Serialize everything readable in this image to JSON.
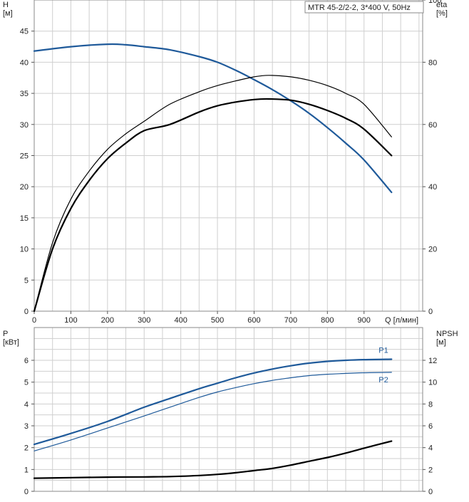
{
  "title": "MTR 45-2/2-2, 3*400 V, 50Hz",
  "colors": {
    "blue": "#1f5a9a",
    "black": "#000000",
    "grid": "#cfcfcf"
  },
  "chart_data": [
    {
      "type": "line",
      "xlabel": "Q [л/мин]",
      "ylabel_left": "H\n[м]",
      "ylabel_right": "eta\n[%]",
      "xlim": [
        0,
        1060
      ],
      "ylim_left": [
        0,
        50
      ],
      "ylim_right": [
        0,
        100
      ],
      "x_ticks": [
        "0",
        "100",
        "200",
        "300",
        "400",
        "500",
        "600",
        "700",
        "800",
        "900"
      ],
      "y_ticks_left": [
        "0",
        "5",
        "10",
        "15",
        "20",
        "25",
        "30",
        "35",
        "40",
        "45"
      ],
      "y_ticks_right": [
        "0",
        "20",
        "40",
        "60",
        "80",
        "100"
      ],
      "grid": true,
      "series": [
        {
          "id": "head",
          "axis": "left",
          "color": "#1f5a9a",
          "x": [
            0,
            100,
            200,
            250,
            300,
            370,
            450,
            500,
            550,
            600,
            650,
            700,
            750,
            800,
            850,
            900,
            975
          ],
          "y": [
            41.8,
            42.5,
            42.9,
            42.8,
            42.5,
            42.0,
            40.9,
            40.0,
            38.7,
            37.2,
            35.6,
            33.8,
            31.8,
            29.5,
            27.0,
            24.3,
            19.1
          ]
        },
        {
          "id": "eta_pump",
          "axis": "right",
          "color": "#000000",
          "x": [
            0,
            50,
            100,
            150,
            200,
            250,
            300,
            370,
            450,
            500,
            550,
            600,
            640,
            700,
            750,
            800,
            850,
            900,
            975
          ],
          "y": [
            0,
            20,
            33,
            42,
            49,
            54,
            58,
            60.0,
            64,
            66,
            67.2,
            68,
            68.2,
            67.8,
            66.5,
            64.5,
            62,
            58.5,
            50
          ]
        },
        {
          "id": "eta_total",
          "axis": "right",
          "color": "#000000",
          "x": [
            0,
            50,
            100,
            150,
            200,
            250,
            300,
            370,
            450,
            500,
            550,
            600,
            640,
            700,
            750,
            800,
            850,
            900,
            975
          ],
          "y": [
            0,
            22,
            36,
            45,
            52,
            57,
            61,
            66.5,
            70.5,
            72.5,
            74,
            75.3,
            75.8,
            75.3,
            74.2,
            72.5,
            70,
            66.5,
            56
          ]
        }
      ]
    },
    {
      "type": "line",
      "ylabel_left": "P\n[кВт]",
      "ylabel_right": "NPSH\n[м]",
      "xlim": [
        0,
        1060
      ],
      "ylim_left": [
        0,
        7.5
      ],
      "ylim_right": [
        0,
        15
      ],
      "y_ticks_left": [
        "0",
        "1",
        "2",
        "3",
        "4",
        "5",
        "6"
      ],
      "y_ticks_right": [
        "0",
        "2",
        "4",
        "6",
        "8",
        "10",
        "12"
      ],
      "grid": true,
      "series": [
        {
          "id": "P1",
          "name": "P1",
          "axis": "left",
          "color": "#1f5a9a",
          "x": [
            0,
            100,
            200,
            300,
            370,
            450,
            500,
            550,
            600,
            650,
            700,
            750,
            800,
            850,
            900,
            975
          ],
          "y": [
            2.15,
            2.65,
            3.2,
            3.85,
            4.25,
            4.7,
            4.95,
            5.2,
            5.42,
            5.6,
            5.75,
            5.87,
            5.95,
            6.0,
            6.03,
            6.05
          ]
        },
        {
          "id": "P2",
          "name": "P2",
          "axis": "left",
          "color": "#1f5a9a",
          "x": [
            0,
            100,
            200,
            300,
            370,
            450,
            500,
            550,
            600,
            650,
            700,
            750,
            800,
            850,
            900,
            975
          ],
          "y": [
            1.85,
            2.35,
            2.9,
            3.45,
            3.85,
            4.3,
            4.55,
            4.75,
            4.93,
            5.08,
            5.2,
            5.3,
            5.36,
            5.4,
            5.43,
            5.45
          ]
        },
        {
          "id": "npsh",
          "axis": "right",
          "color": "#000000",
          "x": [
            0,
            100,
            200,
            300,
            370,
            450,
            500,
            550,
            600,
            650,
            700,
            750,
            800,
            850,
            900,
            975
          ],
          "y": [
            1.2,
            1.25,
            1.3,
            1.32,
            1.35,
            1.45,
            1.55,
            1.7,
            1.9,
            2.1,
            2.4,
            2.75,
            3.1,
            3.5,
            3.95,
            4.6
          ]
        }
      ]
    }
  ]
}
